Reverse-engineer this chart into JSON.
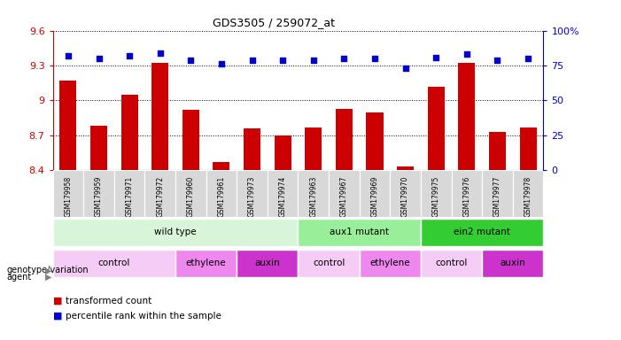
{
  "title": "GDS3505 / 259072_at",
  "samples": [
    "GSM179958",
    "GSM179959",
    "GSM179971",
    "GSM179972",
    "GSM179960",
    "GSM179961",
    "GSM179973",
    "GSM179974",
    "GSM179963",
    "GSM179967",
    "GSM179969",
    "GSM179970",
    "GSM179975",
    "GSM179976",
    "GSM179977",
    "GSM179978"
  ],
  "bar_values": [
    9.17,
    8.78,
    9.05,
    9.32,
    8.92,
    8.47,
    8.76,
    8.7,
    8.77,
    8.93,
    8.9,
    8.43,
    9.12,
    9.32,
    8.73,
    8.77
  ],
  "dot_values": [
    82,
    80,
    82,
    84,
    79,
    76,
    79,
    79,
    79,
    80,
    80,
    73,
    81,
    83,
    79,
    80
  ],
  "ylim": [
    8.4,
    9.6
  ],
  "yticks": [
    8.4,
    8.7,
    9.0,
    9.3,
    9.6
  ],
  "ytick_labels": [
    "8.4",
    "8.7",
    "9",
    "9.3",
    "9.6"
  ],
  "y2lim": [
    0,
    100
  ],
  "y2ticks": [
    0,
    25,
    50,
    75,
    100
  ],
  "y2tick_labels": [
    "0",
    "25",
    "50",
    "75",
    "100%"
  ],
  "bar_color": "#cc0000",
  "dot_color": "#0000cc",
  "bar_width": 0.55,
  "genotype_groups": [
    {
      "label": "wild type",
      "start": 0,
      "end": 8,
      "color": "#d9f5d9"
    },
    {
      "label": "aux1 mutant",
      "start": 8,
      "end": 12,
      "color": "#99ee99"
    },
    {
      "label": "ein2 mutant",
      "start": 12,
      "end": 16,
      "color": "#33cc33"
    }
  ],
  "agent_groups": [
    {
      "label": "control",
      "start": 0,
      "end": 4,
      "color": "#f5ccf5"
    },
    {
      "label": "ethylene",
      "start": 4,
      "end": 6,
      "color": "#ee88ee"
    },
    {
      "label": "auxin",
      "start": 6,
      "end": 8,
      "color": "#cc33cc"
    },
    {
      "label": "control",
      "start": 8,
      "end": 10,
      "color": "#f5ccf5"
    },
    {
      "label": "ethylene",
      "start": 10,
      "end": 12,
      "color": "#ee88ee"
    },
    {
      "label": "control",
      "start": 12,
      "end": 14,
      "color": "#f5ccf5"
    },
    {
      "label": "auxin",
      "start": 14,
      "end": 16,
      "color": "#cc33cc"
    }
  ],
  "sample_band_color": "#d8d8d8",
  "background_color": "#ffffff"
}
